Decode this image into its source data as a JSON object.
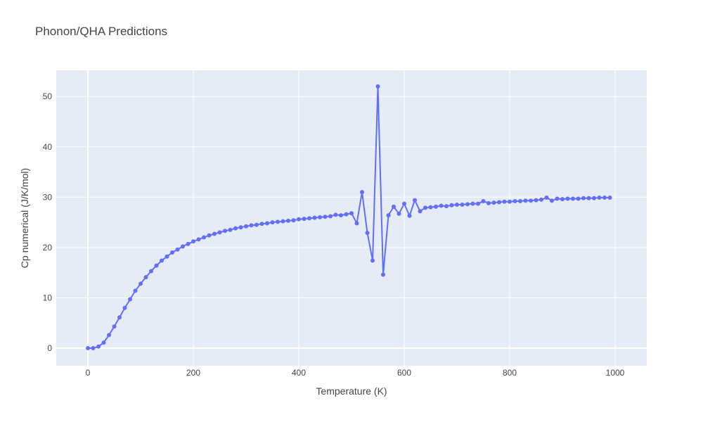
{
  "chart_data": {
    "type": "line",
    "title": "Phonon/QHA Predictions",
    "xlabel": "Temperature (K)",
    "ylabel": "Cp numerical (J/K/mol)",
    "xlim": [
      -60,
      1060
    ],
    "ylim": [
      -3.5,
      55.2
    ],
    "xticks": [
      0,
      200,
      400,
      600,
      800,
      1000
    ],
    "yticks": [
      0,
      10,
      20,
      30,
      40,
      50
    ],
    "grid": true,
    "line_color": "#636efa",
    "plot_bg": "#e5ecf6",
    "series": [
      {
        "mode": "lines+markers",
        "x": [
          0,
          10,
          20,
          30,
          40,
          50,
          60,
          70,
          80,
          90,
          100,
          110,
          120,
          130,
          140,
          150,
          160,
          170,
          180,
          190,
          200,
          210,
          220,
          230,
          240,
          250,
          260,
          270,
          280,
          290,
          300,
          310,
          320,
          330,
          340,
          350,
          360,
          370,
          380,
          390,
          400,
          410,
          420,
          430,
          440,
          450,
          460,
          470,
          480,
          490,
          500,
          510,
          520,
          530,
          540,
          550,
          560,
          570,
          580,
          590,
          600,
          610,
          620,
          630,
          640,
          650,
          660,
          670,
          680,
          690,
          700,
          710,
          720,
          730,
          740,
          750,
          760,
          770,
          780,
          790,
          800,
          810,
          820,
          830,
          840,
          850,
          860,
          870,
          880,
          890,
          900,
          910,
          920,
          930,
          940,
          950,
          960,
          970,
          980,
          990
        ],
        "y": [
          0,
          0,
          0.3,
          1.1,
          2.6,
          4.3,
          6.1,
          8.0,
          9.7,
          11.4,
          12.8,
          14.1,
          15.3,
          16.4,
          17.4,
          18.2,
          19.0,
          19.6,
          20.2,
          20.7,
          21.2,
          21.6,
          22.0,
          22.4,
          22.7,
          23.0,
          23.3,
          23.5,
          23.8,
          24.0,
          24.2,
          24.4,
          24.5,
          24.7,
          24.8,
          25.0,
          25.1,
          25.2,
          25.3,
          25.4,
          25.6,
          25.7,
          25.8,
          25.9,
          26.0,
          26.1,
          26.2,
          26.5,
          26.4,
          26.6,
          26.8,
          24.8,
          31.0,
          22.9,
          17.4,
          52.0,
          14.6,
          26.4,
          28.1,
          26.7,
          28.7,
          26.3,
          29.4,
          27.2,
          27.9,
          28.0,
          28.1,
          28.3,
          28.2,
          28.4,
          28.5,
          28.5,
          28.6,
          28.7,
          28.7,
          29.2,
          28.8,
          28.9,
          29.0,
          29.1,
          29.1,
          29.2,
          29.2,
          29.3,
          29.3,
          29.4,
          29.5,
          29.9,
          29.3,
          29.7,
          29.6,
          29.7,
          29.7,
          29.7,
          29.8,
          29.8,
          29.8,
          29.9,
          29.9,
          29.9
        ]
      }
    ]
  }
}
